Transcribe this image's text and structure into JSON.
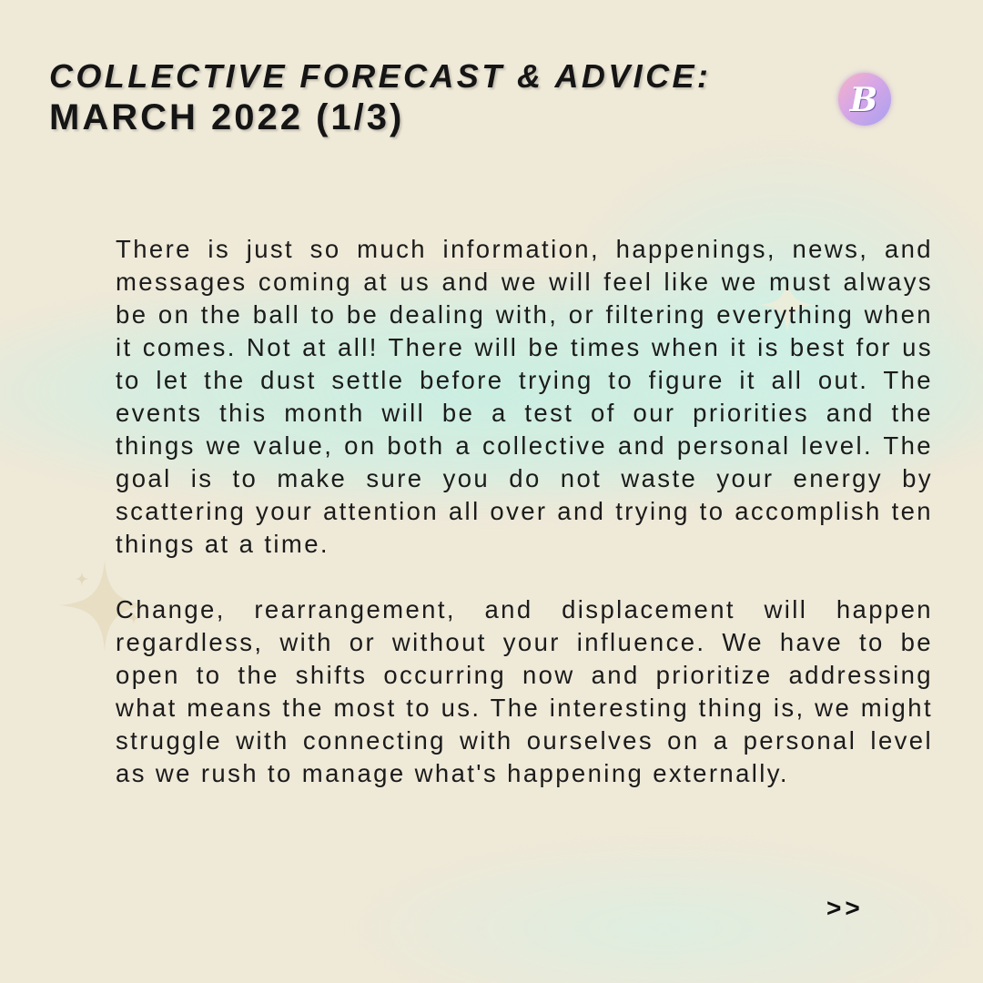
{
  "header": {
    "kicker": "COLLECTIVE FORECAST & ADVICE:",
    "title": "MARCH 2022 (1/3)"
  },
  "logo": {
    "letter": "B",
    "colors": [
      "#f6b3c7",
      "#d6a6e6",
      "#a9a0f0"
    ]
  },
  "body": {
    "paragraphs": [
      "There is just so much information, happenings, news, and messages coming at us and we will feel like we must always be on the ball to be dealing with, or filtering everything when it comes. Not at all! There will be times when it is best for us to let the dust settle before trying to figure it all out. The events this month will be a test of our priorities and the things we value, on both a collective and personal level. The goal is to make sure you do not waste your energy by scattering your attention all over and trying to accomplish ten things at a time.",
      "Change, rearrangement, and displacement will happen regardless, with or without your influence. We have to be open to the shifts occurring now and prioritize addressing what means the most to us. The interesting thing is, we might struggle with connecting with ourselves on a personal level as we rush to manage what's happening externally."
    ]
  },
  "navigation": {
    "next_label": ">>"
  },
  "theme": {
    "background": "#efe9d8",
    "glow": "#c8eee2",
    "text": "#1b1b1b"
  }
}
